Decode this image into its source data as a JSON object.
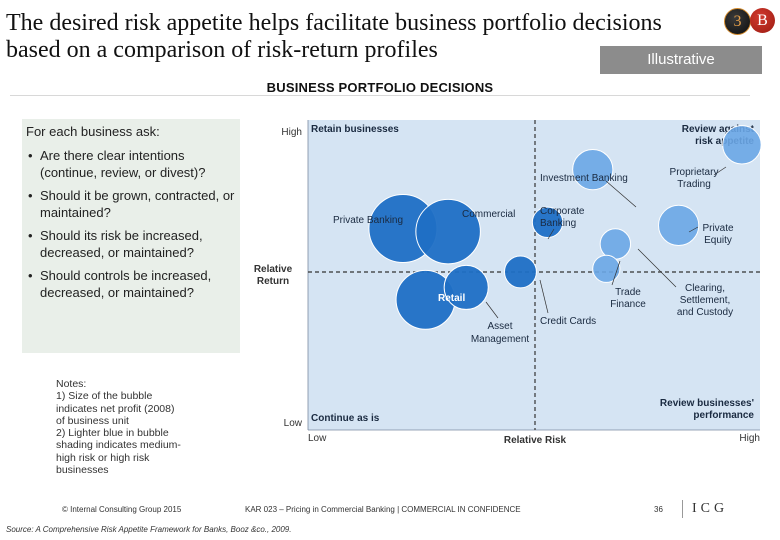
{
  "title": {
    "line1": "The desired risk appetite helps facilitate business portfolio decisions",
    "line2": "based on a comparison of risk-return profiles"
  },
  "badge": {
    "left": "3",
    "right": "B"
  },
  "illustrative_label": "Illustrative",
  "section_title": "BUSINESS PORTFOLIO DECISIONS",
  "ask_panel": {
    "intro": "For each business ask:",
    "questions": [
      "Are there clear intentions (continue, review, or divest)?",
      "Should it be grown, contracted, or maintained?",
      "Should its risk be increased, decreased, or maintained?",
      "Should controls be increased, decreased, or maintained?"
    ]
  },
  "notes": {
    "heading": "Notes:",
    "items": [
      "1) Size of the bubble\nindicates net profit (2008)\nof business unit",
      "2) Lighter blue in bubble\nshading indicates medium-\nhigh risk or high risk\nbusinesses"
    ]
  },
  "chart_data": {
    "type": "scatter",
    "xlabel": "Relative Risk",
    "ylabel": "Relative Return",
    "x_ticks": [
      "Low",
      "High"
    ],
    "y_ticks": [
      "High",
      "Low"
    ],
    "quadrant_labels": {
      "top_left": "Retain businesses",
      "top_right": "Review against risk appetite",
      "bottom_left": "Continue as is",
      "bottom_right": "Review businesses' performance"
    },
    "colors": {
      "plot_bg": "#d5e4f3",
      "bubble_dark": "#1f6fc5",
      "bubble_light": "#6aa6e6",
      "divider": "#333333"
    },
    "bubbles": [
      {
        "label": "Private Banking",
        "x": 0.21,
        "y": 0.65,
        "size": 1.0,
        "shade": "dark"
      },
      {
        "label": "Commercial",
        "x": 0.31,
        "y": 0.64,
        "size": 0.9,
        "shade": "dark"
      },
      {
        "label": "Retail",
        "x": 0.26,
        "y": 0.42,
        "size": 0.75,
        "shade": "dark"
      },
      {
        "label": "Asset Management",
        "x": 0.35,
        "y": 0.46,
        "size": 0.42,
        "shade": "dark"
      },
      {
        "label": "Investment Banking",
        "x": 0.63,
        "y": 0.84,
        "size": 0.35,
        "shade": "light"
      },
      {
        "label": "Corporate Banking",
        "x": 0.53,
        "y": 0.67,
        "size": 0.2,
        "shade": "dark"
      },
      {
        "label": "Credit Cards",
        "x": 0.47,
        "y": 0.51,
        "size": 0.22,
        "shade": "dark"
      },
      {
        "label": "Proprietary Trading",
        "x": 0.96,
        "y": 0.92,
        "size": 0.32,
        "shade": "light"
      },
      {
        "label": "Private Equity",
        "x": 0.82,
        "y": 0.66,
        "size": 0.35,
        "shade": "light"
      },
      {
        "label": "Trade Finance",
        "x": 0.68,
        "y": 0.6,
        "size": 0.2,
        "shade": "light"
      },
      {
        "label": "Clearing, Settlement, and Custody",
        "x": 0.66,
        "y": 0.52,
        "size": 0.16,
        "shade": "light"
      }
    ],
    "bubble_labels": [
      {
        "text": "Private Banking"
      },
      {
        "text": "Commercial"
      },
      {
        "text": "Retail"
      },
      {
        "text": "Asset"
      },
      {
        "text": "Management"
      },
      {
        "text": "Investment Banking"
      },
      {
        "text": "Corporate"
      },
      {
        "text": "Banking"
      },
      {
        "text": "Credit Cards"
      },
      {
        "text": "Proprietary"
      },
      {
        "text": "Trading"
      },
      {
        "text": "Private"
      },
      {
        "text": "Equity"
      },
      {
        "text": "Trade"
      },
      {
        "text": "Finance"
      },
      {
        "text": "Clearing,"
      },
      {
        "text": "Settlement,"
      },
      {
        "text": "and Custody"
      }
    ]
  },
  "footer": {
    "copyright": "© Internal Consulting Group 2015",
    "doc": "KAR 023 – Pricing in Commercial Banking | COMMERCIAL IN CONFIDENCE",
    "page": "36",
    "logo": "ICG"
  },
  "source": "Source: A Comprehensive Risk Appetite Framework for Banks, Booz &co., 2009."
}
